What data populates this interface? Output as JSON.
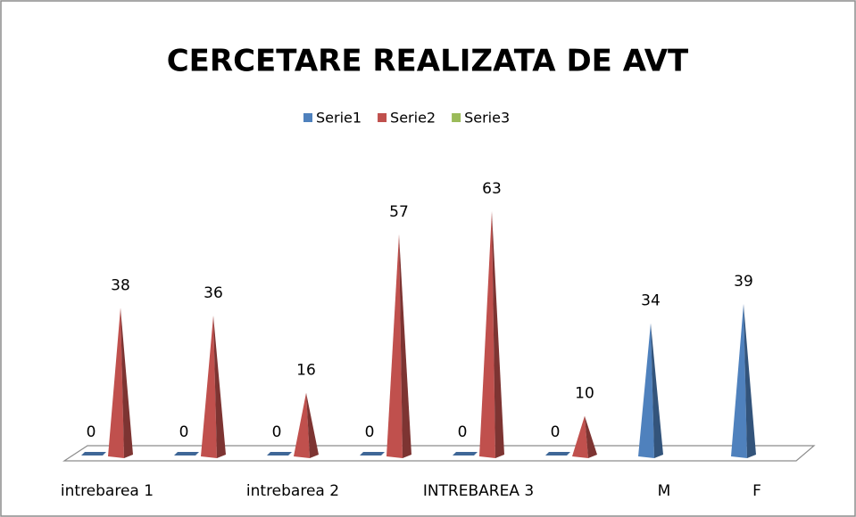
{
  "chart_data": {
    "type": "pyramid",
    "title": "CERCETARE REALIZATA DE AVT",
    "categories": [
      "intrebarea 1",
      null,
      "intrebarea 2",
      null,
      "INTREBAREA 3",
      null,
      "M",
      "F"
    ],
    "series": [
      {
        "name": "Serie1",
        "color": "#4f81bd",
        "values": [
          0,
          0,
          0,
          0,
          0,
          0,
          34,
          39
        ]
      },
      {
        "name": "Serie2",
        "color": "#c0504d",
        "values": [
          38,
          36,
          16,
          57,
          63,
          10,
          null,
          null
        ]
      },
      {
        "name": "Serie3",
        "color": "#9bbb59",
        "values": [
          null,
          null,
          null,
          null,
          null,
          null,
          null,
          null
        ]
      }
    ]
  }
}
